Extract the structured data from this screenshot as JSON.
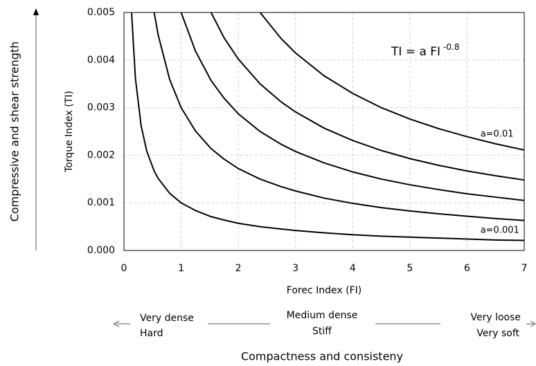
{
  "chart_data": {
    "type": "line",
    "y_label": "Torque Index (TI)",
    "x_label": "Forec Index (FI)",
    "outer_y_label": "Compressive and shear strength",
    "outer_x_label": "Compactness and consisteny",
    "formula": {
      "text": "TI = a FI",
      "superscript": "-0.8"
    },
    "scale_labels": {
      "left": [
        "Very dense",
        "Hard"
      ],
      "middle": [
        "Medium dense",
        "Stiff"
      ],
      "right": [
        "Very loose",
        "Very soft"
      ]
    },
    "x": [
      0.134,
      0.2,
      0.3,
      0.4,
      0.528,
      0.6,
      0.8,
      1,
      1.25,
      1.523,
      1.75,
      2,
      2.38,
      2.75,
      3,
      3.5,
      4,
      4.5,
      5,
      5.5,
      6,
      6.5,
      7
    ],
    "series": [
      {
        "name": "a=0.001",
        "color": "#000000",
        "values": [
          0.00499,
          0.00362,
          0.00262,
          0.00208,
          0.00167,
          0.00151,
          0.0012,
          0.001,
          0.00084,
          0.00071,
          0.00064,
          0.00057,
          0.0005,
          0.00045,
          0.00042,
          0.00037,
          0.00033,
          0.0003,
          0.00028,
          0.00026,
          0.00024,
          0.00022,
          0.00021
        ]
      },
      {
        "color": "#000000",
        "values": [
          null,
          null,
          null,
          null,
          0.005,
          0.00452,
          0.00359,
          0.003,
          0.00251,
          0.00214,
          0.00192,
          0.00172,
          0.0015,
          0.00134,
          0.00125,
          0.0011,
          0.00099,
          0.0009,
          0.00083,
          0.00077,
          0.00072,
          0.00067,
          0.00063
        ]
      },
      {
        "color": "#000000",
        "values": [
          null,
          null,
          null,
          null,
          null,
          null,
          null,
          0.005,
          0.00419,
          0.00357,
          0.0032,
          0.00287,
          0.0025,
          0.00223,
          0.00208,
          0.00184,
          0.00165,
          0.0015,
          0.00138,
          0.00128,
          0.00119,
          0.00112,
          0.00105
        ]
      },
      {
        "color": "#000000",
        "values": [
          null,
          null,
          null,
          null,
          null,
          null,
          null,
          null,
          null,
          0.005,
          0.00447,
          0.00402,
          0.0035,
          0.00312,
          0.00291,
          0.00257,
          0.00231,
          0.0021,
          0.00193,
          0.00179,
          0.00167,
          0.00157,
          0.00148
        ]
      },
      {
        "name": "a=0.01",
        "color": "#000000",
        "values": [
          null,
          null,
          null,
          null,
          null,
          null,
          null,
          null,
          null,
          null,
          null,
          null,
          0.005,
          0.00445,
          0.00415,
          0.00367,
          0.0033,
          0.003,
          0.00276,
          0.00256,
          0.00239,
          0.00224,
          0.00211
        ]
      }
    ],
    "xlim": [
      0,
      7
    ],
    "xticks": [
      0,
      1,
      2,
      3,
      4,
      5,
      6,
      7
    ],
    "ylim": [
      0,
      0.005
    ],
    "yticks": [
      {
        "value": 0,
        "label": "0.000"
      },
      {
        "value": 0.001,
        "label": "0.001"
      },
      {
        "value": 0.002,
        "label": "0.002"
      },
      {
        "value": 0.003,
        "label": "0.003"
      },
      {
        "value": 0.004,
        "label": "0.004"
      },
      {
        "value": 0.005,
        "label": "0.005"
      }
    ],
    "grid": true
  }
}
